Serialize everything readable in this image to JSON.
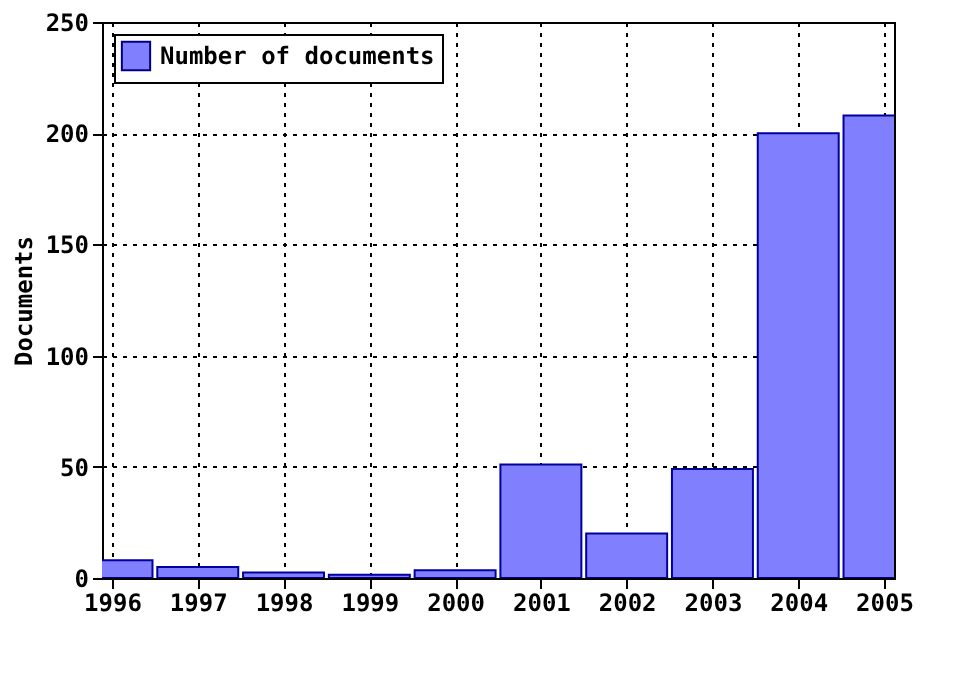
{
  "chart_data": {
    "type": "bar",
    "ylabel": "Documents",
    "x": [
      1996,
      1997,
      1998,
      1999,
      2000,
      2001,
      2002,
      2003,
      2004,
      2005
    ],
    "series": [
      {
        "name": "Number of documents",
        "color": "#8080ff",
        "values": [
          8,
          5,
          2.5,
          1.5,
          3.5,
          51,
          20,
          49,
          200,
          208
        ]
      }
    ],
    "xlim": [
      1996,
      2005
    ],
    "xticks": [
      1996,
      1997,
      1998,
      1999,
      2000,
      2001,
      2002,
      2003,
      2004,
      2005
    ],
    "ylim": [
      0,
      250
    ],
    "yticks": [
      0,
      50,
      100,
      150,
      200,
      250
    ],
    "grid": true,
    "legend": "top left"
  }
}
